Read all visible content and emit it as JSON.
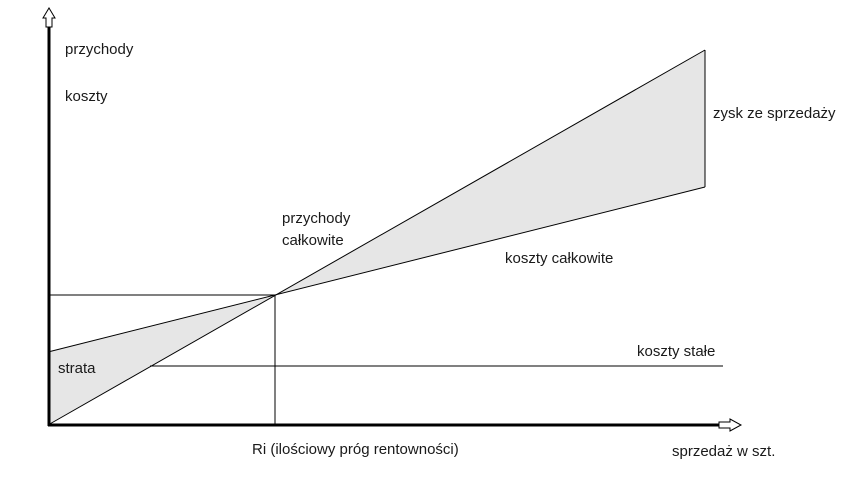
{
  "labels": {
    "y_axis_line1": "przychody",
    "y_axis_line2": "koszty",
    "x_axis": "sprzedaż w szt.",
    "break_even": "Ri (ilościowy próg rentowności)",
    "revenue_line1": "przychody",
    "revenue_line2": "całkowite",
    "total_costs": "koszty całkowite",
    "fixed_costs": "koszty stałe",
    "profit": "zysk ze sprzedaży",
    "loss": "strata"
  },
  "colors": {
    "shade": "#e6e6e6",
    "line": "#000000"
  }
}
